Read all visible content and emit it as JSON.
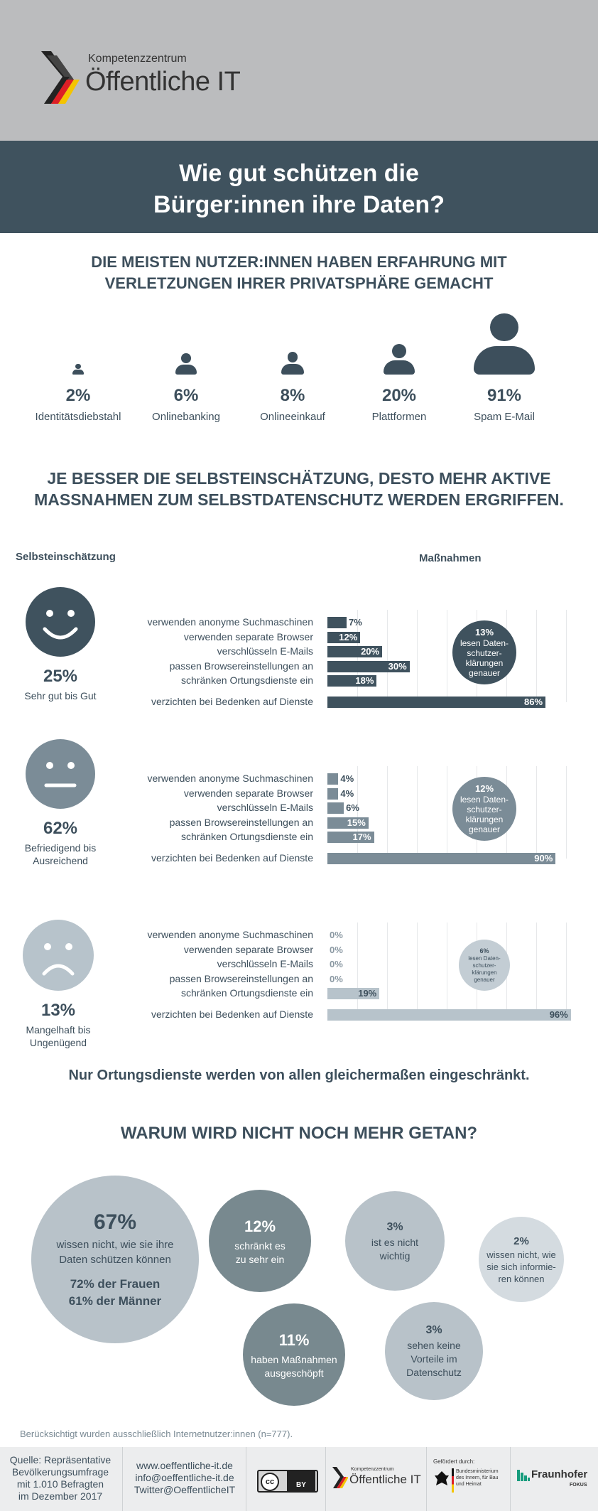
{
  "header": {
    "logo_sub": "Kompetenzzentrum",
    "logo_main": "Öffentliche IT",
    "title_line1": "Wie gut schützen die",
    "title_line2": "Bürger:innen ihre Daten?"
  },
  "section1": {
    "heading_line1": "DIE MEISTEN NUTZER:INNEN HABEN ERFAHRUNG MIT",
    "heading_line2": "VERLETZUNGEN IHRER PRIVATSPHÄRE GEMACHT",
    "items": [
      {
        "value": "2%",
        "label": "Identitätsdiebstahl"
      },
      {
        "value": "6%",
        "label": "Onlinebanking"
      },
      {
        "value": "8%",
        "label": "Onlineeinkauf"
      },
      {
        "value": "20%",
        "label": "Plattformen"
      },
      {
        "value": "91%",
        "label": "Spam E-Mail"
      }
    ]
  },
  "section2": {
    "heading_line1": "JE BESSER DIE SELBSTEINSCHÄTZUNG, DESTO MEHR AKTIVE",
    "heading_line2": "MASSNAHMEN ZUM SELBSTDATENSCHUTZ WERDEN ERGRIFFEN.",
    "col_left": "Selbsteinschätzung",
    "col_right": "Maßnahmen",
    "conclusion": "Nur Ortungsdienste werden von allen gleichermaßen eingeschränkt."
  },
  "chart_data": {
    "type": "bar",
    "categories": [
      "verwenden anonyme Suchmaschinen",
      "verwenden separate Browser",
      "verschlüsseln E-Mails",
      "passen Browsereinstellungen an",
      "schränken Ortungsdienste ein",
      "verzichten bei Bedenken auf Dienste"
    ],
    "series": [
      {
        "name": "Sehr gut bis Gut",
        "share": "25%",
        "values": [
          7,
          12,
          20,
          30,
          18,
          86
        ],
        "labels": [
          "7%",
          "12%",
          "20%",
          "30%",
          "18%",
          "86%"
        ],
        "bubble": {
          "pct": "13%",
          "l1": "lesen Daten-",
          "l2": "schutzer-",
          "l3": "klärungen",
          "l4": "genauer"
        },
        "color": "#3f525e"
      },
      {
        "name": "Befriedigend bis Ausreichend",
        "name_l1": "Befriedigend bis",
        "name_l2": "Ausreichend",
        "share": "62%",
        "values": [
          4,
          4,
          6,
          15,
          17,
          90
        ],
        "labels": [
          "4%",
          "4%",
          "6%",
          "15%",
          "17%",
          "90%"
        ],
        "bubble": {
          "pct": "12%",
          "l1": "lesen Daten-",
          "l2": "schutzer-",
          "l3": "klärungen",
          "l4": "genauer"
        },
        "color": "#7b8c97"
      },
      {
        "name": "Mangelhaft bis Ungenügend",
        "name_l1": "Mangelhaft bis",
        "name_l2": "Ungenügend",
        "share": "13%",
        "values": [
          0,
          0,
          0,
          0,
          19,
          96
        ],
        "labels": [
          "0%",
          "0%",
          "0%",
          "0%",
          "19%",
          "96%"
        ],
        "bubble": {
          "pct": "6%",
          "l1": "lesen Daten-",
          "l2": "schutzer-",
          "l3": "klärungen",
          "l4": "genauer"
        },
        "color": "#b7c3cb"
      }
    ],
    "ylim": [
      0,
      100
    ]
  },
  "section3": {
    "heading": "WARUM WIRD NICHT NOCH MEHR GETAN?",
    "c1": {
      "pct": "67%",
      "l1": "wissen nicht, wie sie ihre",
      "l2": "Daten schützen können",
      "l3": "72% der Frauen",
      "l4": "61% der Männer"
    },
    "c2": {
      "pct": "12%",
      "l1": "schränkt es",
      "l2": "zu sehr ein"
    },
    "c3": {
      "pct": "3%",
      "l1": "ist es nicht",
      "l2": "wichtig"
    },
    "c4": {
      "pct": "2%",
      "l1": "wissen nicht, wie",
      "l2": "sie sich informie-",
      "l3": "ren können"
    },
    "c5": {
      "pct": "11%",
      "l1": "haben Maßnahmen",
      "l2": "ausgeschöpft"
    },
    "c6": {
      "pct": "3%",
      "l1": "sehen keine",
      "l2": "Vorteile im",
      "l3": "Datenschutz"
    },
    "note": "Berücksichtigt wurden ausschließlich Internetnutzer:innen (n=777)."
  },
  "footer": {
    "source_l1": "Quelle: Repräsentative",
    "source_l2": "Bevölkerungsumfrage",
    "source_l3": "mit 1.010 Befragten",
    "source_l4": "im Dezember 2017",
    "web": "www.oeffentliche-it.de",
    "mail": "info@oeffentliche-it.de",
    "twitter": "Twitter@OeffentlicheIT",
    "cc": "cc",
    "by": "BY",
    "logo_sub": "Kompetenzzentrum",
    "logo_main": "Öffentliche IT",
    "funded": "Gefördert durch:",
    "ministry_l1": "Bundesministerium",
    "ministry_l2": "des Innern, für Bau",
    "ministry_l3": "und Heimat",
    "fraunhofer": "Fraunhofer",
    "fokus": "FOKUS"
  }
}
